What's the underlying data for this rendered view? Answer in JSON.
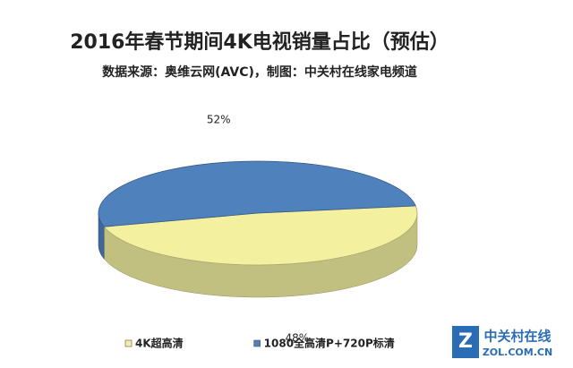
{
  "chart_data": {
    "type": "pie3d",
    "title": "2016年春节期间4K电视销量占比（预估）",
    "subtitle": "数据来源：奥维云网(AVC)，制图：中关村在线家电频道",
    "categories": [
      "4K超高清",
      "1080全高清P+720P标清"
    ],
    "values": [
      48,
      52
    ],
    "value_labels": [
      "48%",
      "52%"
    ],
    "colors": [
      "#f3f0a0",
      "#4f81bd"
    ],
    "legend": "bottom",
    "watermark": [
      "中关村在线",
      "ZOL.COM.CN"
    ]
  }
}
